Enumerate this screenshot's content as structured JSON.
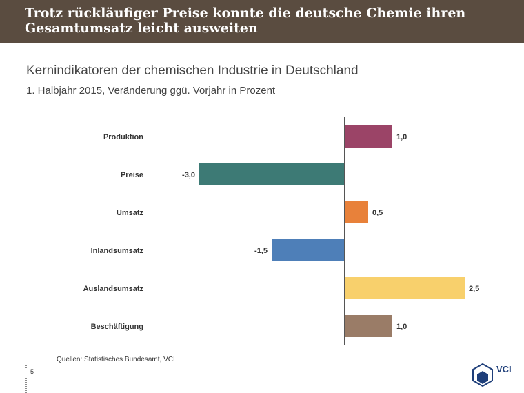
{
  "banner": {
    "title": "Trotz rückläufiger Preise konnte die deutsche Chemie ihren Gesamtumsatz leicht ausweiten"
  },
  "footer": {
    "source": "Quellen: Statistisches Bundesamt, VCI",
    "page_number": "5",
    "logo_text": "VCI"
  },
  "chart_data": {
    "type": "bar",
    "orientation": "horizontal",
    "title": "Kernindikatoren der chemischen Industrie in Deutschland",
    "subtitle": "1. Halbjahr 2015, Veränderung ggü. Vorjahr in Prozent",
    "categories": [
      "Produktion",
      "Preise",
      "Umsatz",
      "Inlandsumsatz",
      "Auslandsumsatz",
      "Beschäftigung"
    ],
    "values": [
      1.0,
      -3.0,
      0.5,
      -1.5,
      2.5,
      1.0
    ],
    "value_labels": [
      "1,0",
      "-3,0",
      "0,5",
      "-1,5",
      "2,5",
      "1,0"
    ],
    "colors": [
      "#9b4467",
      "#3d7a75",
      "#e8813a",
      "#4e7fb8",
      "#f8d06c",
      "#9a7c67"
    ],
    "xlim": [
      -3.0,
      2.5
    ],
    "grid": false,
    "legend": "none"
  }
}
